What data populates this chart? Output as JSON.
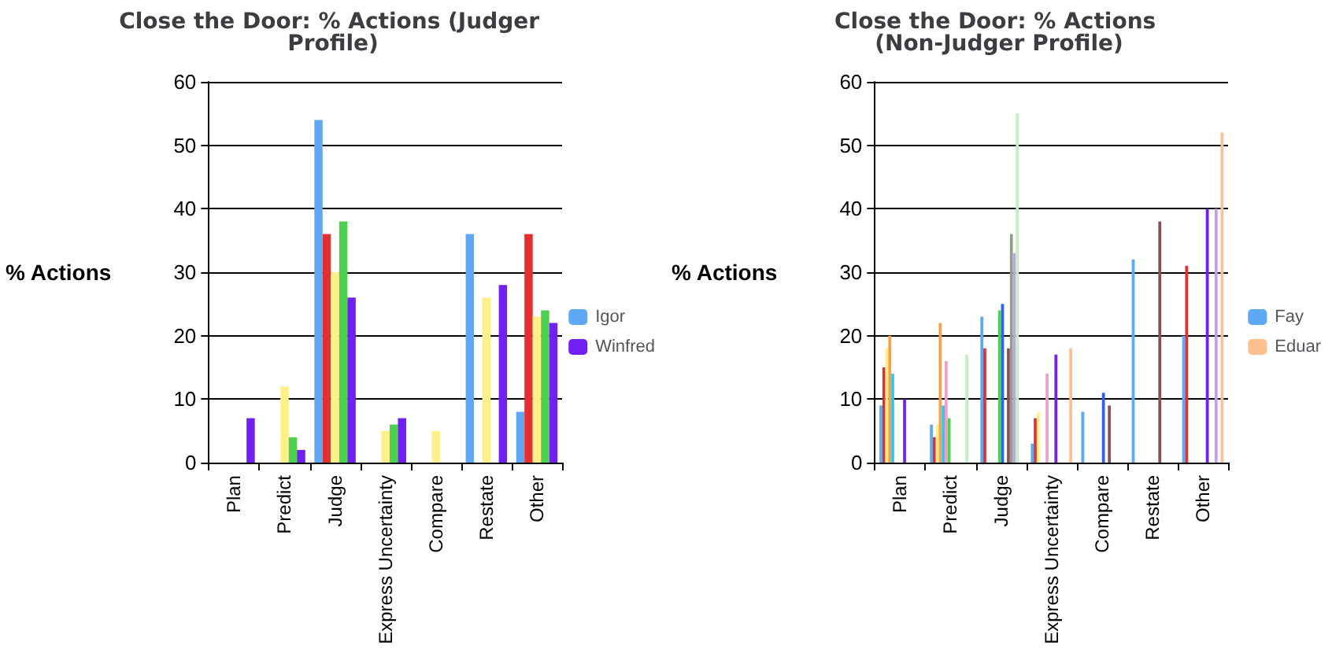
{
  "chart_data": [
    {
      "type": "bar",
      "title": "Close the Door: % Actions (Judger Profile)",
      "ylabel": "% Actions",
      "categories": [
        "Plan",
        "Predict",
        "Judge",
        "Express Uncertainty",
        "Compare",
        "Restate",
        "Other"
      ],
      "ylim": [
        0,
        60
      ],
      "yticks": [
        0,
        10,
        20,
        30,
        40,
        50,
        60
      ],
      "grid": "y",
      "legend": "right",
      "series": [
        {
          "name": "Igor",
          "color": "#5fa8f5",
          "values": [
            0,
            0,
            54,
            0,
            0,
            36,
            8
          ]
        },
        {
          "color": "#e03030",
          "values": [
            0,
            0,
            36,
            0,
            0,
            0,
            36
          ]
        },
        {
          "color": "#fff08a",
          "values": [
            0,
            12,
            30,
            5,
            5,
            26,
            23
          ]
        },
        {
          "color": "#50d050",
          "values": [
            0,
            4,
            38,
            6,
            0,
            0,
            24
          ]
        },
        {
          "name": "Winfred",
          "color": "#7020f0",
          "values": [
            7,
            2,
            26,
            7,
            0,
            28,
            22
          ]
        }
      ]
    },
    {
      "type": "bar",
      "title": "Close the Door: % Actions (Non-Judger Profile)",
      "ylabel": "% Actions",
      "categories": [
        "Plan",
        "Predict",
        "Judge",
        "Express Uncertainty",
        "Compare",
        "Restate",
        "Other"
      ],
      "ylim": [
        0,
        60
      ],
      "yticks": [
        0,
        10,
        20,
        30,
        40,
        50,
        60
      ],
      "grid": "y",
      "legend": "right",
      "series": [
        {
          "name": "Fay",
          "color": "#5fa8f5",
          "values": [
            9,
            6,
            23,
            3,
            8,
            32,
            20
          ]
        },
        {
          "color": "#e03030",
          "values": [
            15,
            4,
            18,
            7,
            0,
            0,
            31
          ]
        },
        {
          "color": "#fff080",
          "values": [
            18,
            6,
            0,
            8,
            0,
            0,
            0
          ]
        },
        {
          "color": "#ffa040",
          "values": [
            20,
            22,
            0,
            0,
            0,
            0,
            0
          ]
        },
        {
          "color": "#30c8f0",
          "values": [
            14,
            9,
            0,
            0,
            0,
            0,
            0
          ]
        },
        {
          "color": "#f0a0c8",
          "values": [
            0,
            16,
            0,
            14,
            0,
            0,
            0
          ]
        },
        {
          "color": "#50d050",
          "values": [
            0,
            7,
            24,
            0,
            0,
            0,
            0
          ]
        },
        {
          "color": "#3060f0",
          "values": [
            0,
            0,
            25,
            0,
            11,
            0,
            0
          ]
        },
        {
          "color": "#7020f0",
          "values": [
            10,
            0,
            0,
            17,
            0,
            0,
            40
          ]
        },
        {
          "color": "#885058",
          "values": [
            0,
            0,
            18,
            0,
            9,
            38,
            0
          ]
        },
        {
          "color": "#90a080",
          "values": [
            0,
            0,
            36,
            0,
            0,
            0,
            0
          ]
        },
        {
          "color": "#c0a0f0",
          "values": [
            0,
            0,
            33,
            0,
            0,
            0,
            40
          ]
        },
        {
          "color": "#c0f0c0",
          "values": [
            0,
            17,
            55,
            0,
            0,
            0,
            0
          ]
        },
        {
          "name": "Eduar",
          "color": "#ffc090",
          "values": [
            0,
            0,
            0,
            18,
            0,
            0,
            52
          ]
        }
      ]
    }
  ]
}
